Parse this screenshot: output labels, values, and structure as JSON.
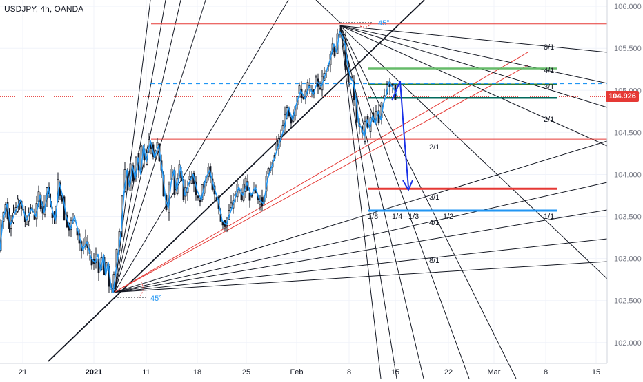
{
  "chart_title": "USDJPY, 4h, OANDA",
  "last_price_label": "104.926",
  "colors": {
    "candle": "#131722",
    "close_line": "#2196f3",
    "fan_black": "#131722",
    "fan_red": "#e53935",
    "level_red": "#e53935",
    "level_green": "#66bb6a",
    "level_darkgreen": "#2e7d32",
    "level_teal": "#00695c",
    "level_blue": "#2196f3",
    "projection_arrow": "#1a32e8",
    "axis_text": "#787b86",
    "grid": "#f0f3fa"
  },
  "fan_labels": {
    "upper_eighth": "8/1",
    "upper_quarter": "4/1",
    "upper_third": "3/1",
    "upper_half": "2/1",
    "mid_half": "2/1",
    "lower_third": "3/1",
    "lower_quarter": "4/1",
    "lower_eighth": "8/1",
    "one_one": "1/1",
    "frac_eighth": "1/8",
    "frac_quarter": "1/4",
    "frac_third": "1/3",
    "frac_half": "1/2"
  },
  "angle_labels": {
    "low": "45°",
    "high": "45°"
  },
  "chart_data": {
    "type": "candlestick",
    "symbol": "USDJPY",
    "timeframe": "4h",
    "source": "OANDA",
    "x_tick_labels": [
      "21",
      "2021",
      "11",
      "18",
      "25",
      "Feb",
      "8",
      "15",
      "22",
      "Mar",
      "8",
      "15"
    ],
    "y_tick_labels": [
      "106.000",
      "105.500",
      "105.000",
      "104.500",
      "104.000",
      "103.500",
      "103.000",
      "102.500",
      "102.000"
    ],
    "y_ticks": [
      106.0,
      105.5,
      105.0,
      104.5,
      104.0,
      103.5,
      103.0,
      102.5,
      102.0
    ],
    "ylim": [
      101.9,
      106.05
    ],
    "last_price": 104.926,
    "price_path": [
      [
        0,
        103.1
      ],
      [
        4,
        103.45
      ],
      [
        10,
        103.65
      ],
      [
        15,
        103.4
      ],
      [
        22,
        103.55
      ],
      [
        30,
        103.7
      ],
      [
        38,
        103.45
      ],
      [
        46,
        103.6
      ],
      [
        52,
        103.5
      ],
      [
        58,
        103.75
      ],
      [
        64,
        103.55
      ],
      [
        70,
        103.85
      ],
      [
        75,
        103.6
      ],
      [
        80,
        103.45
      ],
      [
        86,
        103.9
      ],
      [
        92,
        103.7
      ],
      [
        96,
        103.5
      ],
      [
        102,
        103.35
      ],
      [
        108,
        103.5
      ],
      [
        114,
        103.3
      ],
      [
        120,
        103.1
      ],
      [
        126,
        103.2
      ],
      [
        132,
        103.0
      ],
      [
        138,
        102.95
      ],
      [
        142,
        103.05
      ],
      [
        146,
        102.85
      ],
      [
        150,
        103.05
      ],
      [
        153,
        102.8
      ],
      [
        157,
        102.95
      ],
      [
        161,
        102.65
      ],
      [
        164,
        102.6
      ],
      [
        168,
        102.85
      ],
      [
        172,
        103.1
      ],
      [
        176,
        103.35
      ],
      [
        180,
        103.8
      ],
      [
        184,
        104.05
      ],
      [
        188,
        103.85
      ],
      [
        192,
        104.1
      ],
      [
        196,
        103.95
      ],
      [
        200,
        104.2
      ],
      [
        204,
        104.0
      ],
      [
        208,
        104.35
      ],
      [
        212,
        104.15
      ],
      [
        218,
        104.4
      ],
      [
        224,
        104.2
      ],
      [
        230,
        104.35
      ],
      [
        236,
        104.0
      ],
      [
        240,
        103.7
      ],
      [
        244,
        103.6
      ],
      [
        248,
        103.9
      ],
      [
        252,
        104.05
      ],
      [
        256,
        103.8
      ],
      [
        262,
        104.1
      ],
      [
        268,
        103.75
      ],
      [
        274,
        103.9
      ],
      [
        280,
        104.0
      ],
      [
        286,
        103.8
      ],
      [
        292,
        103.7
      ],
      [
        298,
        103.95
      ],
      [
        304,
        104.05
      ],
      [
        310,
        103.85
      ],
      [
        316,
        103.7
      ],
      [
        322,
        103.45
      ],
      [
        328,
        103.4
      ],
      [
        334,
        103.55
      ],
      [
        340,
        103.7
      ],
      [
        346,
        103.85
      ],
      [
        352,
        103.75
      ],
      [
        358,
        103.9
      ],
      [
        364,
        103.75
      ],
      [
        370,
        103.85
      ],
      [
        376,
        103.7
      ],
      [
        382,
        103.65
      ],
      [
        388,
        103.95
      ],
      [
        394,
        104.1
      ],
      [
        400,
        104.25
      ],
      [
        406,
        104.4
      ],
      [
        412,
        104.55
      ],
      [
        418,
        104.8
      ],
      [
        424,
        104.65
      ],
      [
        430,
        104.85
      ],
      [
        436,
        105.0
      ],
      [
        442,
        104.9
      ],
      [
        448,
        105.05
      ],
      [
        454,
        104.95
      ],
      [
        460,
        105.1
      ],
      [
        466,
        105.05
      ],
      [
        472,
        105.2
      ],
      [
        478,
        105.35
      ],
      [
        484,
        105.55
      ],
      [
        488,
        105.45
      ],
      [
        492,
        105.7
      ],
      [
        496,
        105.65
      ],
      [
        500,
        105.55
      ],
      [
        504,
        105.3
      ],
      [
        508,
        105.15
      ],
      [
        512,
        105.1
      ],
      [
        516,
        104.9
      ],
      [
        520,
        104.6
      ],
      [
        524,
        104.55
      ],
      [
        528,
        104.45
      ],
      [
        532,
        104.65
      ],
      [
        536,
        104.55
      ],
      [
        540,
        104.7
      ],
      [
        544,
        104.6
      ],
      [
        548,
        104.75
      ],
      [
        552,
        104.65
      ],
      [
        556,
        104.85
      ],
      [
        560,
        104.95
      ],
      [
        564,
        105.1
      ],
      [
        568,
        105.05
      ],
      [
        572,
        105.0
      ],
      [
        576,
        104.93
      ]
    ],
    "pivot_low": {
      "x": 166,
      "price": 102.6
    },
    "pivot_high": {
      "x": 493,
      "price": 105.77
    },
    "horizontal_levels": [
      {
        "name": "resistance-high",
        "price": 105.79,
        "color": "level_red",
        "from": 219,
        "to": 880,
        "style": "solid"
      },
      {
        "name": "support-mid",
        "price": 104.42,
        "color": "level_red",
        "from": 219,
        "to": 880,
        "style": "solid"
      },
      {
        "name": "green-upper",
        "price": 105.26,
        "color": "level_green",
        "from": 533,
        "to": 808,
        "style": "solid"
      },
      {
        "name": "green-lower",
        "price": 105.07,
        "color": "level_darkgreen",
        "from": 533,
        "to": 808,
        "style": "solid"
      },
      {
        "name": "teal-level",
        "price": 104.91,
        "color": "level_teal",
        "from": 533,
        "to": 808,
        "style": "solid"
      },
      {
        "name": "dashed-blue",
        "price": 105.08,
        "color": "level_blue",
        "from": 218,
        "to": 880,
        "style": "dashed"
      },
      {
        "name": "current-price-dotted",
        "price": 104.926,
        "color": "level_red",
        "from": 0,
        "to": 880,
        "style": "dotted"
      },
      {
        "name": "target-red",
        "price": 103.83,
        "color": "level_red",
        "from": 533,
        "to": 808,
        "style": "thick"
      },
      {
        "name": "target-blue",
        "price": 103.57,
        "color": "level_blue",
        "from": 533,
        "to": 808,
        "style": "thick"
      }
    ]
  }
}
